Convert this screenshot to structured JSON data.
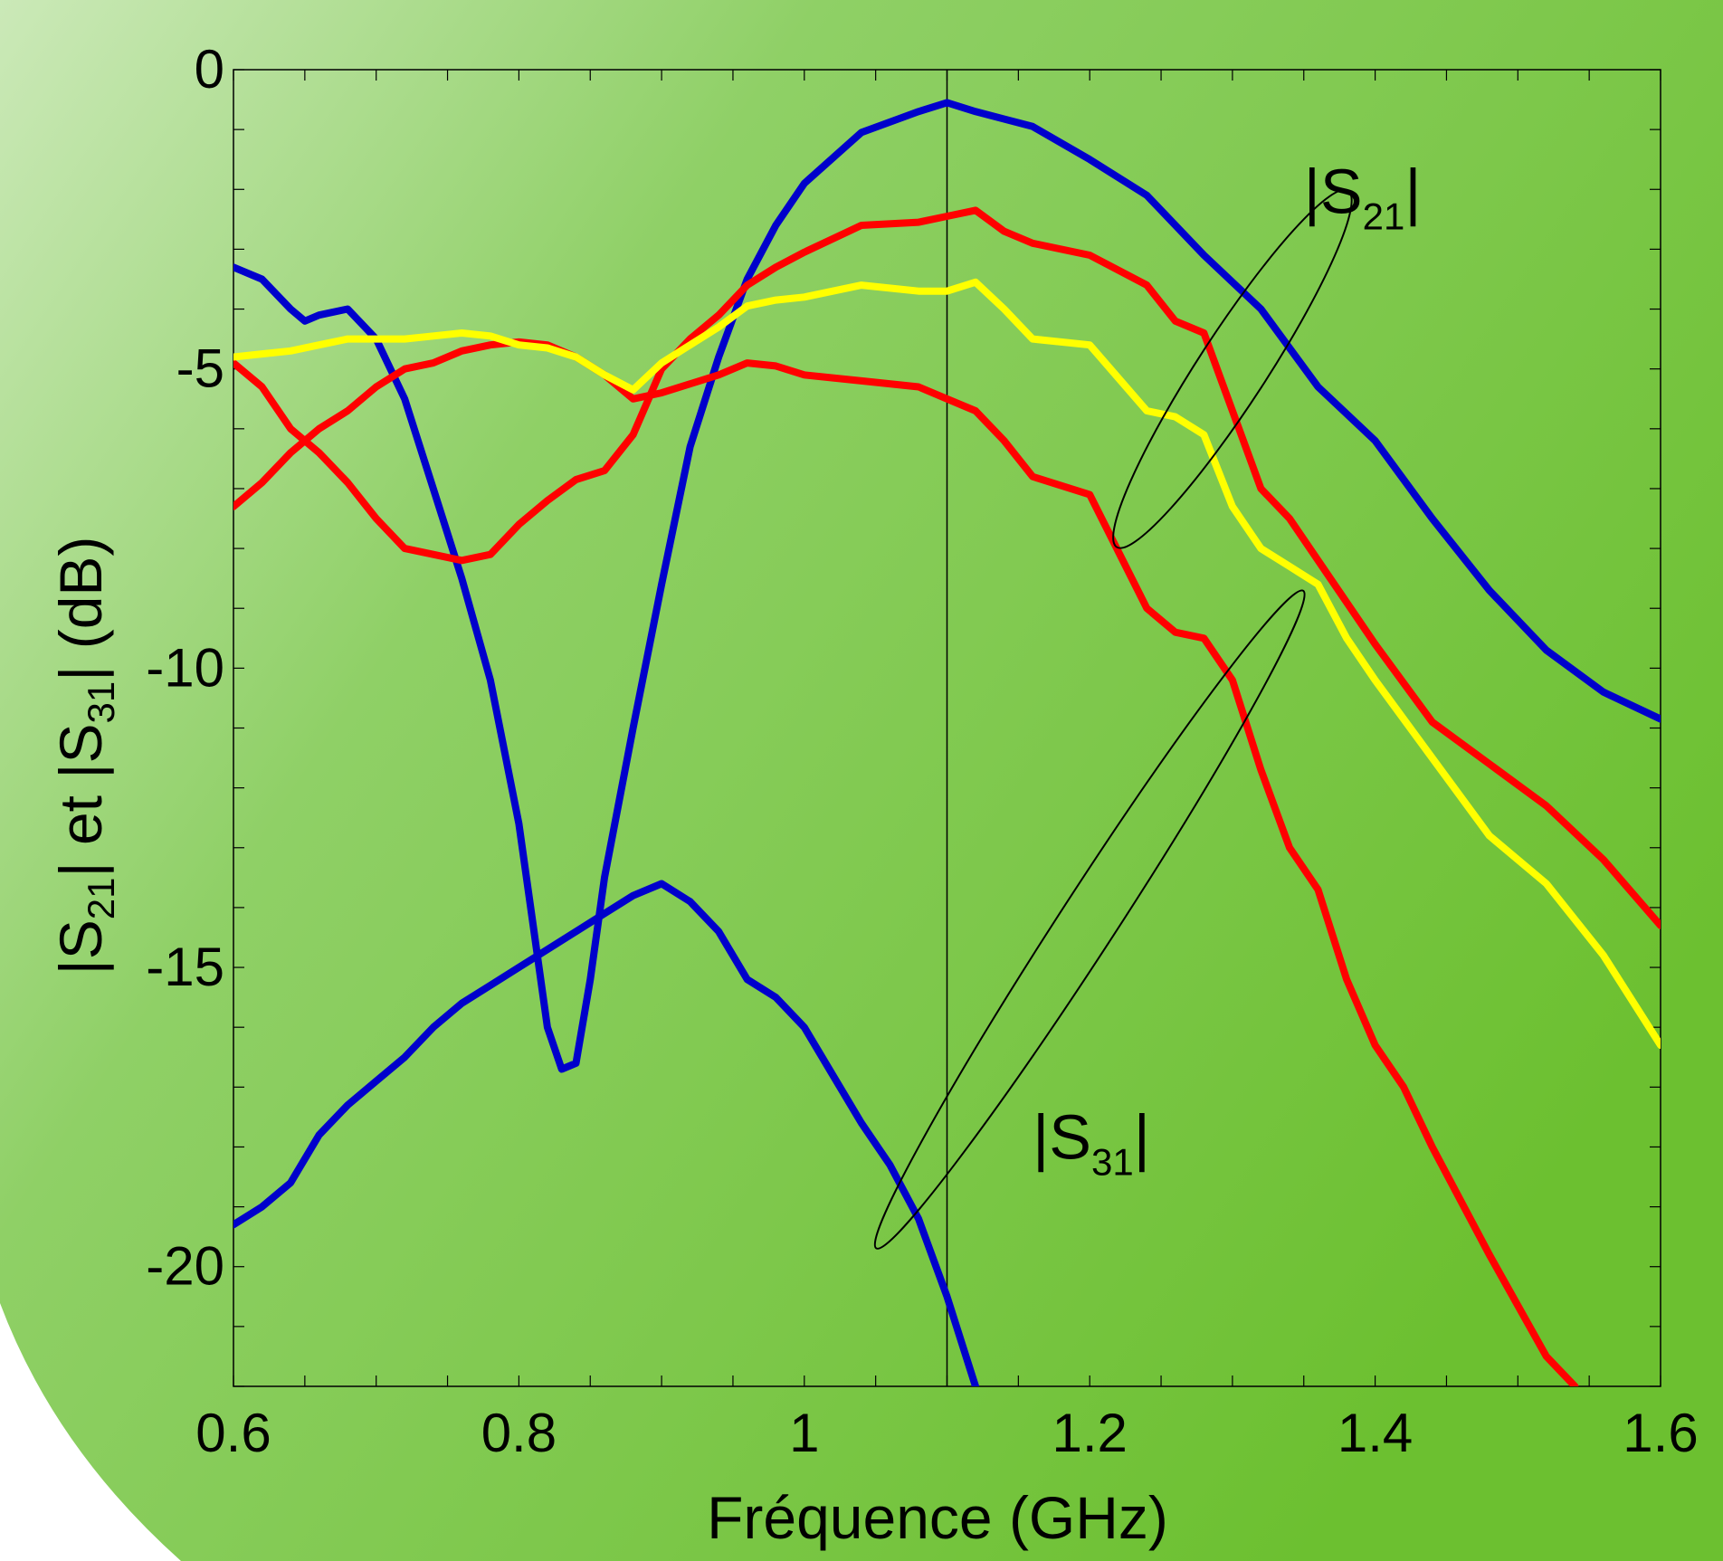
{
  "chart_data": {
    "type": "line",
    "xlabel": "Fréquence (GHz)",
    "ylabel_parts": [
      "|S",
      "21",
      "| et |S",
      "31",
      "| (dB)"
    ],
    "xlim": [
      0.6,
      1.6
    ],
    "ylim": [
      -22,
      0
    ],
    "x_ticks": [
      0.6,
      0.8,
      1,
      1.2,
      1.4,
      1.6
    ],
    "x_tick_labels": [
      "0.6",
      "0.8",
      "1",
      "1.2",
      "1.4",
      "1.6"
    ],
    "y_ticks": [
      0,
      -5,
      -10,
      -15,
      -20
    ],
    "y_tick_labels": [
      "0",
      "-5",
      "-10",
      "-15",
      "-20"
    ],
    "vertical_marker_x": 1.1,
    "grid": false,
    "colors": {
      "blue": "#0000cc",
      "red": "#ff0000",
      "yellow": "#ffff00",
      "background_dark": "#6cc030",
      "background_light": "#c8e8b4"
    },
    "series": [
      {
        "color": "#0000cc",
        "points": [
          [
            0.6,
            -3.3
          ],
          [
            0.62,
            -3.5
          ],
          [
            0.64,
            -4.0
          ],
          [
            0.65,
            -4.2
          ],
          [
            0.66,
            -4.1
          ],
          [
            0.68,
            -4.0
          ],
          [
            0.7,
            -4.5
          ],
          [
            0.72,
            -5.5
          ],
          [
            0.74,
            -7.0
          ],
          [
            0.76,
            -8.5
          ],
          [
            0.78,
            -10.2
          ],
          [
            0.8,
            -12.6
          ],
          [
            0.81,
            -14.3
          ],
          [
            0.82,
            -16.0
          ],
          [
            0.83,
            -16.7
          ],
          [
            0.84,
            -16.6
          ],
          [
            0.85,
            -15.2
          ],
          [
            0.86,
            -13.5
          ],
          [
            0.88,
            -11.0
          ],
          [
            0.9,
            -8.6
          ],
          [
            0.92,
            -6.3
          ],
          [
            0.94,
            -4.8
          ],
          [
            0.96,
            -3.5
          ],
          [
            0.98,
            -2.6
          ],
          [
            1.0,
            -1.9
          ],
          [
            1.04,
            -1.05
          ],
          [
            1.08,
            -0.7
          ],
          [
            1.1,
            -0.55
          ],
          [
            1.12,
            -0.7
          ],
          [
            1.16,
            -0.95
          ],
          [
            1.2,
            -1.5
          ],
          [
            1.24,
            -2.1
          ],
          [
            1.28,
            -3.1
          ],
          [
            1.32,
            -4.0
          ],
          [
            1.36,
            -5.3
          ],
          [
            1.4,
            -6.2
          ],
          [
            1.44,
            -7.5
          ],
          [
            1.48,
            -8.7
          ],
          [
            1.52,
            -9.7
          ],
          [
            1.56,
            -10.4
          ],
          [
            1.6,
            -10.85
          ]
        ]
      },
      {
        "color": "#0000cc",
        "points": [
          [
            0.6,
            -19.3
          ],
          [
            0.62,
            -19.0
          ],
          [
            0.64,
            -18.6
          ],
          [
            0.66,
            -17.8
          ],
          [
            0.68,
            -17.3
          ],
          [
            0.7,
            -16.9
          ],
          [
            0.72,
            -16.5
          ],
          [
            0.74,
            -16.0
          ],
          [
            0.76,
            -15.6
          ],
          [
            0.78,
            -15.3
          ],
          [
            0.8,
            -15.0
          ],
          [
            0.82,
            -14.7
          ],
          [
            0.84,
            -14.4
          ],
          [
            0.86,
            -14.1
          ],
          [
            0.88,
            -13.8
          ],
          [
            0.9,
            -13.6
          ],
          [
            0.92,
            -13.9
          ],
          [
            0.94,
            -14.4
          ],
          [
            0.96,
            -15.2
          ],
          [
            0.98,
            -15.5
          ],
          [
            1.0,
            -16.0
          ],
          [
            1.02,
            -16.8
          ],
          [
            1.04,
            -17.6
          ],
          [
            1.06,
            -18.3
          ],
          [
            1.08,
            -19.2
          ],
          [
            1.1,
            -20.5
          ],
          [
            1.12,
            -22.0
          ]
        ]
      },
      {
        "color": "#ff0000",
        "points": [
          [
            0.6,
            -4.9
          ],
          [
            0.62,
            -5.3
          ],
          [
            0.64,
            -6.0
          ],
          [
            0.66,
            -6.4
          ],
          [
            0.68,
            -6.9
          ],
          [
            0.7,
            -7.5
          ],
          [
            0.72,
            -8.0
          ],
          [
            0.74,
            -8.1
          ],
          [
            0.76,
            -8.2
          ],
          [
            0.78,
            -8.1
          ],
          [
            0.8,
            -7.6
          ],
          [
            0.82,
            -7.2
          ],
          [
            0.84,
            -6.85
          ],
          [
            0.86,
            -6.7
          ],
          [
            0.88,
            -6.1
          ],
          [
            0.9,
            -5.0
          ],
          [
            0.92,
            -4.5
          ],
          [
            0.94,
            -4.1
          ],
          [
            0.96,
            -3.6
          ],
          [
            0.98,
            -3.3
          ],
          [
            1.0,
            -3.05
          ],
          [
            1.04,
            -2.6
          ],
          [
            1.08,
            -2.55
          ],
          [
            1.1,
            -2.45
          ],
          [
            1.12,
            -2.35
          ],
          [
            1.14,
            -2.7
          ],
          [
            1.16,
            -2.9
          ],
          [
            1.2,
            -3.1
          ],
          [
            1.24,
            -3.6
          ],
          [
            1.26,
            -4.2
          ],
          [
            1.28,
            -4.4
          ],
          [
            1.3,
            -5.7
          ],
          [
            1.32,
            -7.0
          ],
          [
            1.34,
            -7.5
          ],
          [
            1.36,
            -8.2
          ],
          [
            1.38,
            -8.9
          ],
          [
            1.4,
            -9.6
          ],
          [
            1.44,
            -10.9
          ],
          [
            1.48,
            -11.6
          ],
          [
            1.52,
            -12.3
          ],
          [
            1.56,
            -13.2
          ],
          [
            1.6,
            -14.3
          ]
        ]
      },
      {
        "color": "#ff0000",
        "points": [
          [
            0.6,
            -7.3
          ],
          [
            0.62,
            -6.9
          ],
          [
            0.64,
            -6.4
          ],
          [
            0.66,
            -6.0
          ],
          [
            0.68,
            -5.7
          ],
          [
            0.7,
            -5.3
          ],
          [
            0.72,
            -5.0
          ],
          [
            0.74,
            -4.9
          ],
          [
            0.76,
            -4.7
          ],
          [
            0.78,
            -4.6
          ],
          [
            0.8,
            -4.55
          ],
          [
            0.82,
            -4.6
          ],
          [
            0.84,
            -4.8
          ],
          [
            0.86,
            -5.1
          ],
          [
            0.88,
            -5.5
          ],
          [
            0.9,
            -5.4
          ],
          [
            0.92,
            -5.25
          ],
          [
            0.94,
            -5.1
          ],
          [
            0.96,
            -4.9
          ],
          [
            0.98,
            -4.95
          ],
          [
            1.0,
            -5.1
          ],
          [
            1.04,
            -5.2
          ],
          [
            1.08,
            -5.3
          ],
          [
            1.1,
            -5.5
          ],
          [
            1.12,
            -5.7
          ],
          [
            1.14,
            -6.2
          ],
          [
            1.16,
            -6.8
          ],
          [
            1.2,
            -7.1
          ],
          [
            1.24,
            -9.0
          ],
          [
            1.26,
            -9.4
          ],
          [
            1.28,
            -9.5
          ],
          [
            1.3,
            -10.2
          ],
          [
            1.32,
            -11.7
          ],
          [
            1.34,
            -13.0
          ],
          [
            1.36,
            -13.7
          ],
          [
            1.38,
            -15.2
          ],
          [
            1.4,
            -16.3
          ],
          [
            1.42,
            -17.0
          ],
          [
            1.44,
            -18.0
          ],
          [
            1.48,
            -19.8
          ],
          [
            1.52,
            -21.5
          ],
          [
            1.54,
            -22.0
          ]
        ]
      },
      {
        "color": "#ffff00",
        "points": [
          [
            0.6,
            -4.8
          ],
          [
            0.62,
            -4.75
          ],
          [
            0.64,
            -4.7
          ],
          [
            0.66,
            -4.6
          ],
          [
            0.68,
            -4.5
          ],
          [
            0.7,
            -4.5
          ],
          [
            0.72,
            -4.5
          ],
          [
            0.74,
            -4.45
          ],
          [
            0.76,
            -4.4
          ],
          [
            0.78,
            -4.45
          ],
          [
            0.8,
            -4.6
          ],
          [
            0.82,
            -4.65
          ],
          [
            0.84,
            -4.8
          ],
          [
            0.86,
            -5.1
          ],
          [
            0.88,
            -5.35
          ],
          [
            0.9,
            -4.9
          ],
          [
            0.92,
            -4.6
          ],
          [
            0.94,
            -4.3
          ],
          [
            0.96,
            -3.95
          ],
          [
            0.98,
            -3.85
          ],
          [
            1.0,
            -3.8
          ],
          [
            1.04,
            -3.6
          ],
          [
            1.08,
            -3.7
          ],
          [
            1.1,
            -3.7
          ],
          [
            1.12,
            -3.55
          ],
          [
            1.14,
            -4.0
          ],
          [
            1.16,
            -4.5
          ],
          [
            1.2,
            -4.6
          ],
          [
            1.24,
            -5.7
          ],
          [
            1.26,
            -5.8
          ],
          [
            1.28,
            -6.1
          ],
          [
            1.3,
            -7.3
          ],
          [
            1.32,
            -8.0
          ],
          [
            1.34,
            -8.3
          ],
          [
            1.36,
            -8.6
          ],
          [
            1.38,
            -9.5
          ],
          [
            1.4,
            -10.2
          ],
          [
            1.44,
            -11.5
          ],
          [
            1.48,
            -12.8
          ],
          [
            1.52,
            -13.6
          ],
          [
            1.56,
            -14.8
          ],
          [
            1.6,
            -16.3
          ]
        ]
      }
    ],
    "annotations": [
      {
        "label_parts": [
          "|S",
          "21",
          "|"
        ],
        "x": 1.35,
        "y": -2.4
      },
      {
        "label_parts": [
          "|S",
          "31",
          "|"
        ],
        "x": 1.16,
        "y": -18.2
      }
    ],
    "ellipses": [
      {
        "cx": 1.3,
        "cy": -5.0,
        "rx": 0.024,
        "ry": 3.55,
        "angle": 33
      },
      {
        "cx": 1.2,
        "cy": -14.2,
        "rx": 0.02,
        "ry": 6.55,
        "angle": 33
      }
    ]
  }
}
